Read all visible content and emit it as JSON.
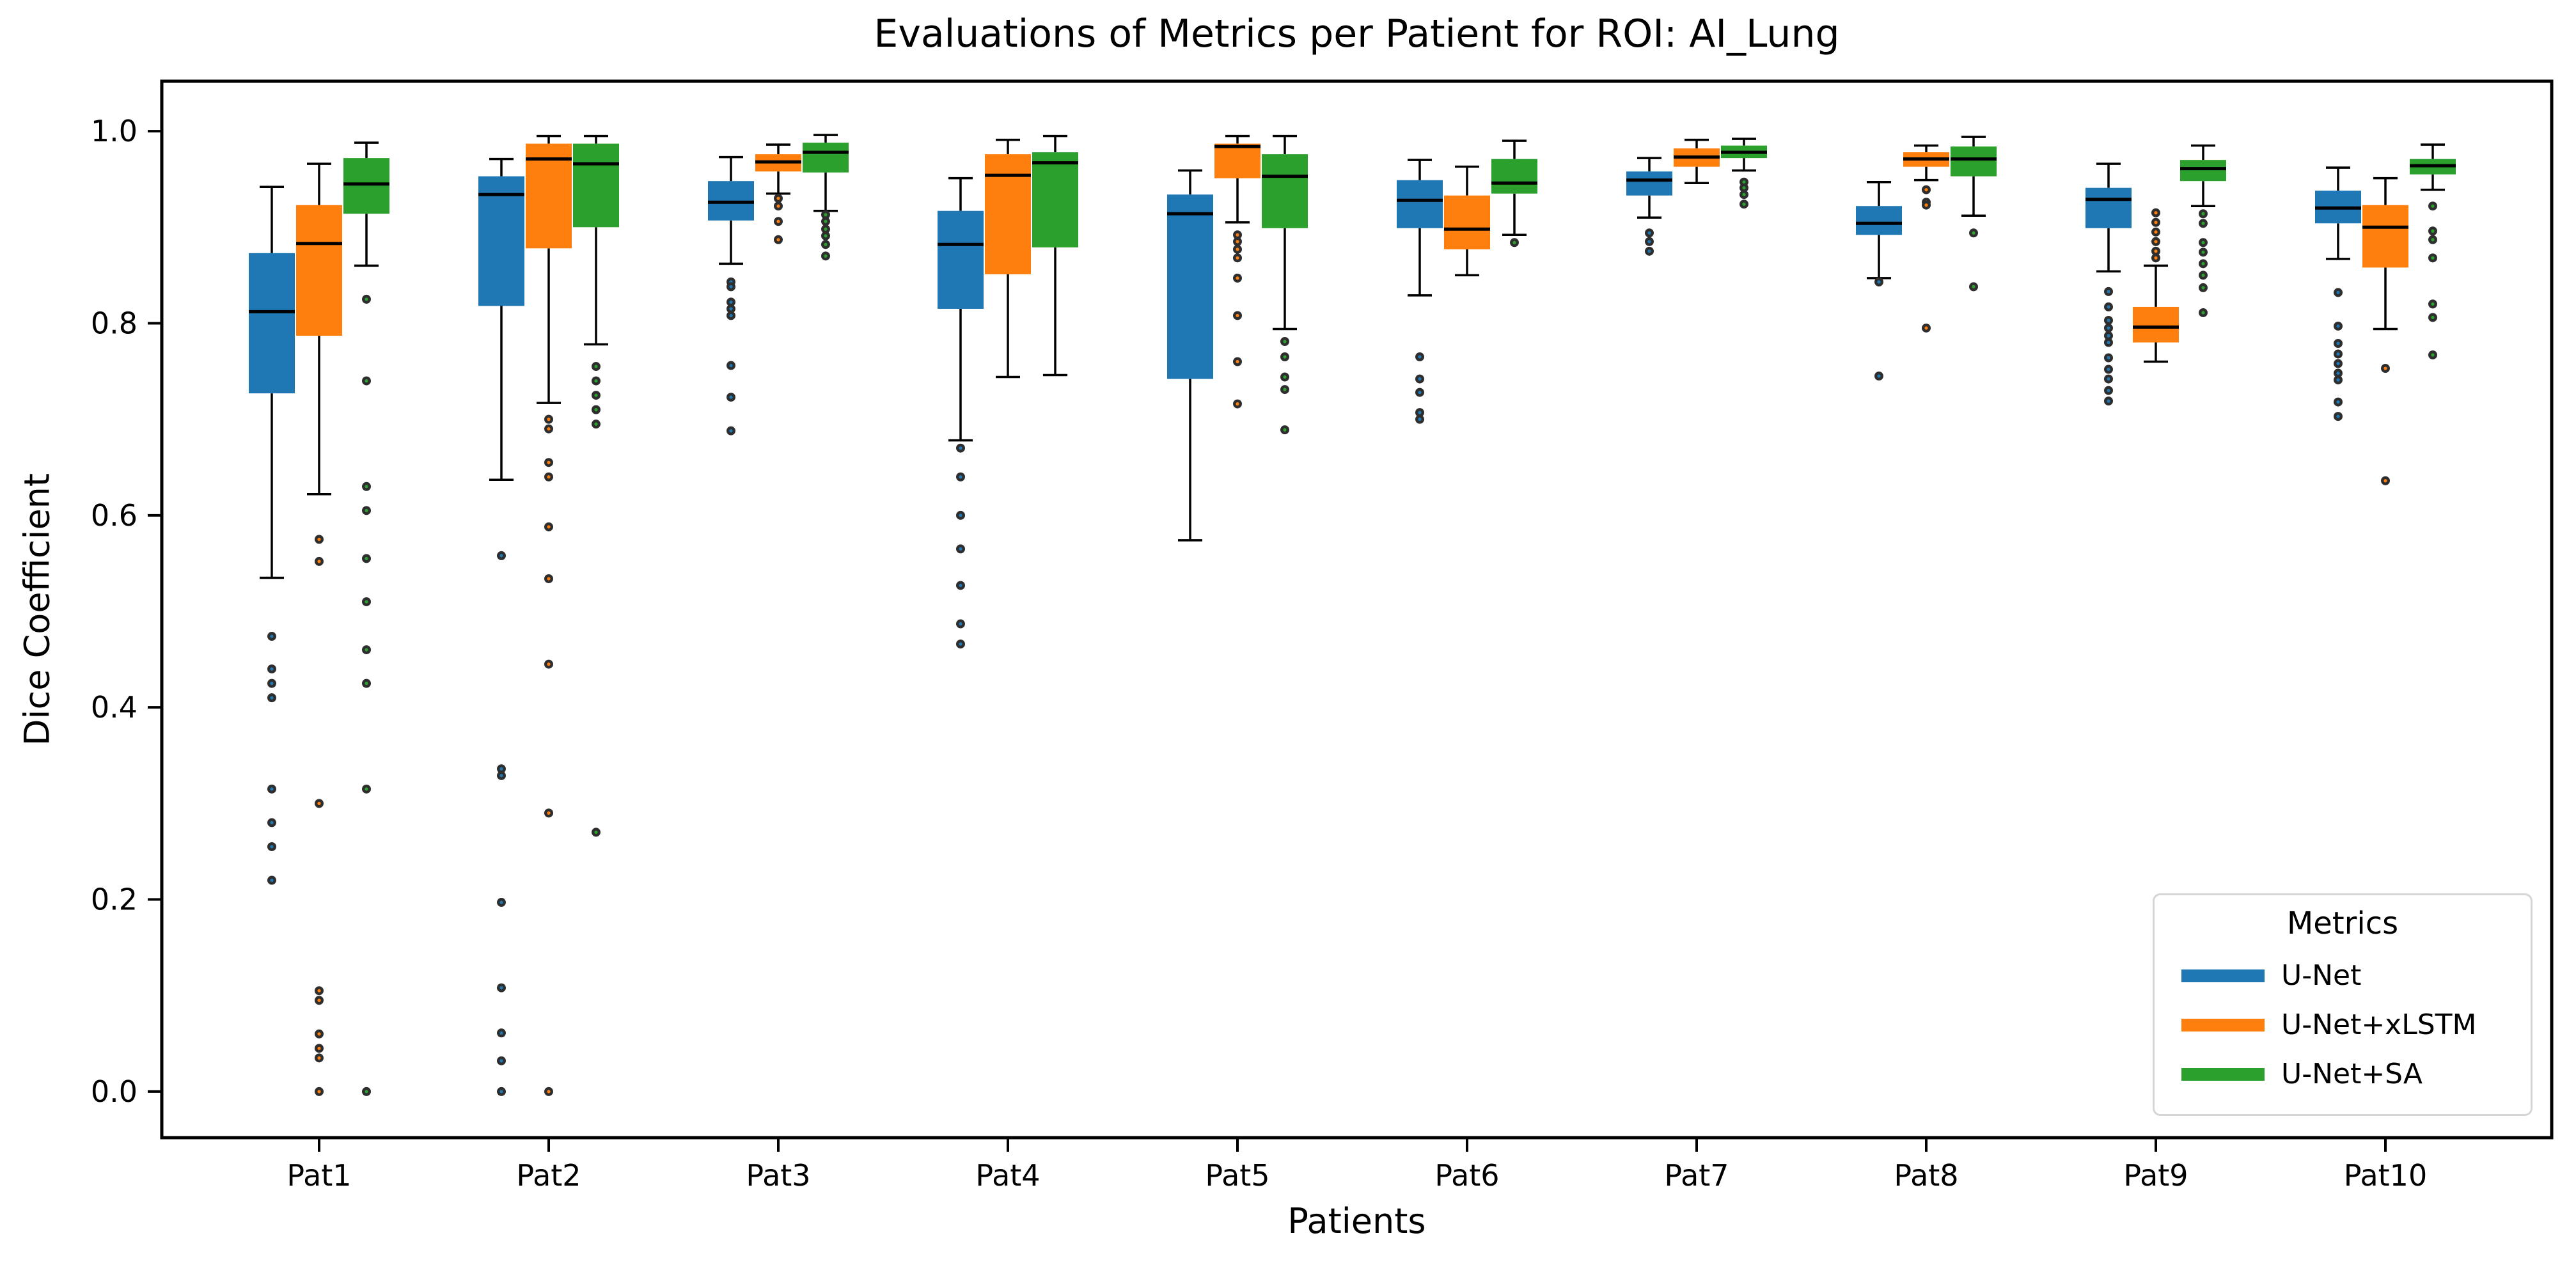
{
  "title": "Evaluations of Metrics per Patient for ROI: AI_Lung",
  "x_axis": {
    "label": "Patients",
    "tick_labels": [
      "Pat1",
      "Pat2",
      "Pat3",
      "Pat4",
      "Pat5",
      "Pat6",
      "Pat7",
      "Pat8",
      "Pat9",
      "Pat10"
    ]
  },
  "y_axis": {
    "label": "Dice Coefficient",
    "tick_labels": [
      "0.0",
      "0.2",
      "0.4",
      "0.6",
      "0.8",
      "1.0"
    ],
    "tick_values": [
      0.0,
      0.2,
      0.4,
      0.6,
      0.8,
      1.0
    ]
  },
  "legend": {
    "title": "Metrics",
    "entries": [
      {
        "label": "U-Net",
        "color": "#1f77b4"
      },
      {
        "label": "U-Net+xLSTM",
        "color": "#ff7f0e"
      },
      {
        "label": "U-Net+SA",
        "color": "#2ca02c"
      }
    ]
  },
  "chart_data": {
    "type": "boxplot",
    "title": "Evaluations of Metrics per Patient for ROI: AI_Lung",
    "xlabel": "Patients",
    "ylabel": "Dice Coefficient",
    "ylim": [
      -0.048,
      1.052
    ],
    "y_ticks": [
      0.0,
      0.2,
      0.4,
      0.6,
      0.8,
      1.0
    ],
    "grid": false,
    "legend_position": "lower right",
    "categories": [
      "Pat1",
      "Pat2",
      "Pat3",
      "Pat4",
      "Pat5",
      "Pat6",
      "Pat7",
      "Pat8",
      "Pat9",
      "Pat10"
    ],
    "series": [
      {
        "name": "U-Net",
        "color": "#1f77b4",
        "boxes": [
          {
            "whislo": 0.535,
            "q1": 0.727,
            "med": 0.812,
            "q3": 0.873,
            "whishi": 0.942,
            "outliers": [
              0.474,
              0.44,
              0.425,
              0.41,
              0.315,
              0.28,
              0.255,
              0.22
            ]
          },
          {
            "whislo": 0.637,
            "q1": 0.818,
            "med": 0.934,
            "q3": 0.953,
            "whishi": 0.971,
            "outliers": [
              0.558,
              0.336,
              0.329,
              0.197,
              0.108,
              0.061,
              0.032,
              0.0
            ]
          },
          {
            "whislo": 0.862,
            "q1": 0.907,
            "med": 0.926,
            "q3": 0.948,
            "whishi": 0.973,
            "outliers": [
              0.843,
              0.838,
              0.822,
              0.815,
              0.808,
              0.756,
              0.723,
              0.688
            ]
          },
          {
            "whislo": 0.678,
            "q1": 0.815,
            "med": 0.882,
            "q3": 0.917,
            "whishi": 0.951,
            "outliers": [
              0.67,
              0.64,
              0.6,
              0.565,
              0.527,
              0.487,
              0.466
            ]
          },
          {
            "whislo": 0.574,
            "q1": 0.742,
            "med": 0.914,
            "q3": 0.934,
            "whishi": 0.959,
            "outliers": []
          },
          {
            "whislo": 0.829,
            "q1": 0.899,
            "med": 0.928,
            "q3": 0.949,
            "whishi": 0.97,
            "outliers": [
              0.765,
              0.742,
              0.728,
              0.707,
              0.7
            ]
          },
          {
            "whislo": 0.91,
            "q1": 0.933,
            "med": 0.949,
            "q3": 0.958,
            "whishi": 0.972,
            "outliers": [
              0.894,
              0.885,
              0.875
            ]
          },
          {
            "whislo": 0.847,
            "q1": 0.892,
            "med": 0.904,
            "q3": 0.922,
            "whishi": 0.947,
            "outliers": [
              0.843,
              0.745
            ]
          },
          {
            "whislo": 0.854,
            "q1": 0.899,
            "med": 0.929,
            "q3": 0.941,
            "whishi": 0.966,
            "outliers": [
              0.833,
              0.817,
              0.803,
              0.795,
              0.787,
              0.78,
              0.764,
              0.752,
              0.742,
              0.73,
              0.719
            ]
          },
          {
            "whislo": 0.867,
            "q1": 0.904,
            "med": 0.92,
            "q3": 0.938,
            "whishi": 0.962,
            "outliers": [
              0.832,
              0.797,
              0.779,
              0.768,
              0.758,
              0.748,
              0.741,
              0.718,
              0.703
            ]
          }
        ]
      },
      {
        "name": "U-Net+xLSTM",
        "color": "#ff7f0e",
        "boxes": [
          {
            "whislo": 0.622,
            "q1": 0.787,
            "med": 0.883,
            "q3": 0.923,
            "whishi": 0.966,
            "outliers": [
              0.575,
              0.552,
              0.3,
              0.105,
              0.095,
              0.06,
              0.045,
              0.035,
              0.0
            ]
          },
          {
            "whislo": 0.717,
            "q1": 0.878,
            "med": 0.971,
            "q3": 0.987,
            "whishi": 0.995,
            "outliers": [
              0.7,
              0.69,
              0.655,
              0.64,
              0.588,
              0.534,
              0.445,
              0.29,
              0.0
            ]
          },
          {
            "whislo": 0.935,
            "q1": 0.958,
            "med": 0.968,
            "q3": 0.976,
            "whishi": 0.986,
            "outliers": [
              0.93,
              0.922,
              0.906,
              0.887
            ]
          },
          {
            "whislo": 0.744,
            "q1": 0.851,
            "med": 0.954,
            "q3": 0.976,
            "whishi": 0.991,
            "outliers": []
          },
          {
            "whislo": 0.905,
            "q1": 0.951,
            "med": 0.984,
            "q3": 0.987,
            "whishi": 0.995,
            "outliers": [
              0.892,
              0.885,
              0.877,
              0.868,
              0.847,
              0.808,
              0.76,
              0.716
            ]
          },
          {
            "whislo": 0.85,
            "q1": 0.877,
            "med": 0.898,
            "q3": 0.933,
            "whishi": 0.963,
            "outliers": []
          },
          {
            "whislo": 0.946,
            "q1": 0.963,
            "med": 0.973,
            "q3": 0.982,
            "whishi": 0.991,
            "outliers": []
          },
          {
            "whislo": 0.949,
            "q1": 0.963,
            "med": 0.971,
            "q3": 0.978,
            "whishi": 0.985,
            "outliers": [
              0.939,
              0.926,
              0.923,
              0.795
            ]
          },
          {
            "whislo": 0.76,
            "q1": 0.78,
            "med": 0.796,
            "q3": 0.817,
            "whishi": 0.86,
            "outliers": [
              0.915,
              0.905,
              0.895,
              0.885,
              0.875,
              0.868
            ]
          },
          {
            "whislo": 0.794,
            "q1": 0.858,
            "med": 0.9,
            "q3": 0.923,
            "whishi": 0.951,
            "outliers": [
              0.753,
              0.636
            ]
          }
        ]
      },
      {
        "name": "U-Net+SA",
        "color": "#2ca02c",
        "boxes": [
          {
            "whislo": 0.86,
            "q1": 0.914,
            "med": 0.945,
            "q3": 0.972,
            "whishi": 0.988,
            "outliers": [
              0.825,
              0.74,
              0.63,
              0.605,
              0.555,
              0.51,
              0.46,
              0.425,
              0.315,
              0.0
            ]
          },
          {
            "whislo": 0.778,
            "q1": 0.9,
            "med": 0.966,
            "q3": 0.987,
            "whishi": 0.995,
            "outliers": [
              0.755,
              0.74,
              0.725,
              0.71,
              0.695,
              0.27
            ]
          },
          {
            "whislo": 0.917,
            "q1": 0.957,
            "med": 0.978,
            "q3": 0.988,
            "whishi": 0.996,
            "outliers": [
              0.913,
              0.906,
              0.898,
              0.891,
              0.882,
              0.87
            ]
          },
          {
            "whislo": 0.746,
            "q1": 0.879,
            "med": 0.967,
            "q3": 0.978,
            "whishi": 0.995,
            "outliers": []
          },
          {
            "whislo": 0.794,
            "q1": 0.899,
            "med": 0.953,
            "q3": 0.976,
            "whishi": 0.995,
            "outliers": [
              0.781,
              0.765,
              0.744,
              0.731,
              0.689
            ]
          },
          {
            "whislo": 0.892,
            "q1": 0.935,
            "med": 0.946,
            "q3": 0.971,
            "whishi": 0.99,
            "outliers": [
              0.884
            ]
          },
          {
            "whislo": 0.959,
            "q1": 0.972,
            "med": 0.978,
            "q3": 0.985,
            "whishi": 0.992,
            "outliers": [
              0.947,
              0.941,
              0.934,
              0.924
            ]
          },
          {
            "whislo": 0.912,
            "q1": 0.953,
            "med": 0.971,
            "q3": 0.984,
            "whishi": 0.994,
            "outliers": [
              0.894,
              0.838
            ]
          },
          {
            "whislo": 0.922,
            "q1": 0.948,
            "med": 0.961,
            "q3": 0.97,
            "whishi": 0.985,
            "outliers": [
              0.914,
              0.904,
              0.884,
              0.874,
              0.862,
              0.85,
              0.837,
              0.811
            ]
          },
          {
            "whislo": 0.939,
            "q1": 0.955,
            "med": 0.964,
            "q3": 0.971,
            "whishi": 0.986,
            "outliers": [
              0.922,
              0.896,
              0.887,
              0.868,
              0.82,
              0.806,
              0.767
            ]
          }
        ]
      }
    ]
  }
}
